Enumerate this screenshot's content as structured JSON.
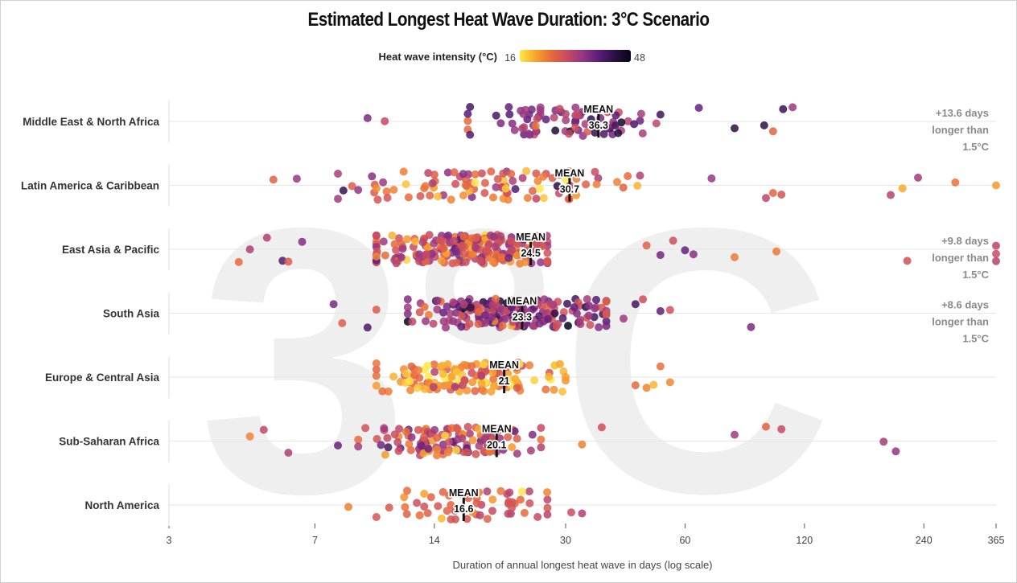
{
  "chart_data": {
    "type": "scatter",
    "title": "Estimated Longest Heat Wave Duration: 3°C Scenario",
    "watermark": "3°C",
    "xlabel": "Duration of annual longest heat wave in days (log scale)",
    "x_scale": "log",
    "xlim": [
      3,
      365
    ],
    "x_ticks": [
      3,
      7,
      14,
      30,
      60,
      120,
      240,
      365
    ],
    "legend": {
      "title": "Heat wave intensity (°C)",
      "min": 16,
      "max": 48,
      "colors": [
        "#fde84a",
        "#f8a329",
        "#e8683a",
        "#c84a63",
        "#933586",
        "#5a1c78",
        "#2a0f42",
        "#07051a"
      ]
    },
    "mean_label": "MEAN",
    "regions": [
      {
        "name": "Middle East & North Africa",
        "mean": 36.3,
        "note": [
          "+13.6 days",
          "longer than",
          "1.5°C"
        ],
        "n": 80,
        "lo": 12.5,
        "hi": 108,
        "core_lo": 17,
        "core_hi": 52,
        "int_mean": 36,
        "int_sd": 5,
        "extra_x": [
          9.5,
          10.5,
          65,
          80,
          95,
          100,
          106,
          112
        ]
      },
      {
        "name": "Latin America & Caribbean",
        "mean": 30.7,
        "note": [],
        "n": 95,
        "lo": 5.5,
        "hi": 365,
        "core_lo": 8,
        "core_hi": 48,
        "int_mean": 27,
        "int_sd": 6,
        "extra_x": [
          5.5,
          6.3,
          8,
          9,
          70,
          96,
          100,
          105,
          198,
          212,
          232,
          288,
          365
        ]
      },
      {
        "name": "East Asia & Pacific",
        "mean": 24.5,
        "note": [
          "+9.8 days",
          "longer than",
          "1.5°C"
        ],
        "n": 210,
        "lo": 4.5,
        "hi": 365,
        "core_lo": 10,
        "core_hi": 27,
        "int_mean": 29,
        "int_sd": 5,
        "extra_x": [
          4.5,
          4.8,
          5.3,
          5.8,
          6,
          6.5,
          48,
          52,
          56,
          60,
          63,
          80,
          102,
          218,
          365,
          365,
          365
        ]
      },
      {
        "name": "South Asia",
        "mean": 23.3,
        "note": [
          "+8.6 days",
          "longer than",
          "1.5°C"
        ],
        "n": 200,
        "lo": 7.5,
        "hi": 88,
        "core_lo": 12,
        "core_hi": 38,
        "int_mean": 34,
        "int_sd": 5,
        "extra_x": [
          7.8,
          8.2,
          9.5,
          10,
          42,
          45,
          47,
          52,
          55,
          88
        ]
      },
      {
        "name": "Europe & Central Asia",
        "mean": 21,
        "note": [],
        "n": 135,
        "lo": 9,
        "hi": 55,
        "core_lo": 10,
        "core_hi": 30,
        "int_mean": 22,
        "int_sd": 4,
        "extra_x": [
          45,
          48,
          50,
          52,
          55
        ]
      },
      {
        "name": "Sub-Saharan Africa",
        "mean": 20.1,
        "note": [],
        "n": 120,
        "lo": 4.8,
        "hi": 210,
        "core_lo": 9,
        "core_hi": 26,
        "int_mean": 29,
        "int_sd": 5,
        "extra_x": [
          4.8,
          5.2,
          6,
          8,
          33,
          37,
          80,
          96,
          105,
          190,
          204
        ]
      },
      {
        "name": "North America",
        "mean": 16.6,
        "note": [],
        "n": 55,
        "lo": 8.5,
        "hi": 33,
        "core_lo": 10,
        "core_hi": 27,
        "int_mean": 27,
        "int_sd": 4,
        "extra_x": [
          8.5,
          31,
          33
        ]
      }
    ]
  }
}
